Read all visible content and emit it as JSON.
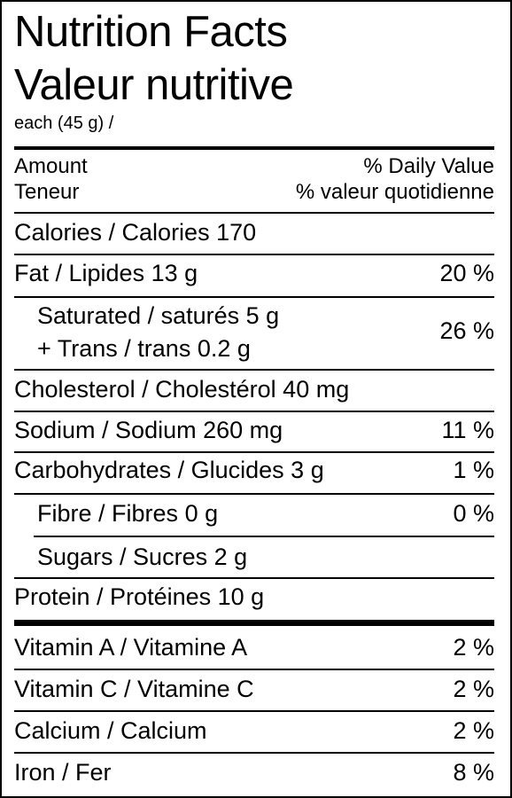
{
  "title_en": "Nutrition Facts",
  "title_fr": "Valeur nutritive",
  "serving": "each (45 g) /",
  "header": {
    "amount_en": "Amount",
    "amount_fr": "Teneur",
    "dv_en": "% Daily Value",
    "dv_fr": "% valeur quotidienne"
  },
  "rows": {
    "calories": {
      "label": "Calories / Calories",
      "amount": "170"
    },
    "fat": {
      "label": "Fat / Lipides",
      "amount": "13 g",
      "dv": "20 %"
    },
    "saturated": {
      "label": "Saturated / saturés",
      "amount": "5 g"
    },
    "trans": {
      "label": "+ Trans / trans",
      "amount": "0.2 g"
    },
    "sat_trans_dv": "26 %",
    "cholesterol": {
      "label": "Cholesterol / Cholestérol",
      "amount": "40 mg"
    },
    "sodium": {
      "label": "Sodium / Sodium",
      "amount": "260 mg",
      "dv": "11 %"
    },
    "carbohydrates": {
      "label": "Carbohydrates / Glucides",
      "amount": "3 g",
      "dv": "1 %"
    },
    "fibre": {
      "label": "Fibre / Fibres",
      "amount": "0 g",
      "dv": "0 %"
    },
    "sugars": {
      "label": "Sugars / Sucres",
      "amount": "2 g"
    },
    "protein": {
      "label": "Protein / Protéines",
      "amount": "10 g"
    }
  },
  "vitamins": {
    "vitamin_a": {
      "label": "Vitamin A / Vitamine A",
      "dv": "2 %"
    },
    "vitamin_c": {
      "label": "Vitamin C / Vitamine C",
      "dv": "2 %"
    },
    "calcium": {
      "label": "Calcium / Calcium",
      "dv": "2 %"
    },
    "iron": {
      "label": "Iron / Fer",
      "dv": "8 %"
    }
  }
}
